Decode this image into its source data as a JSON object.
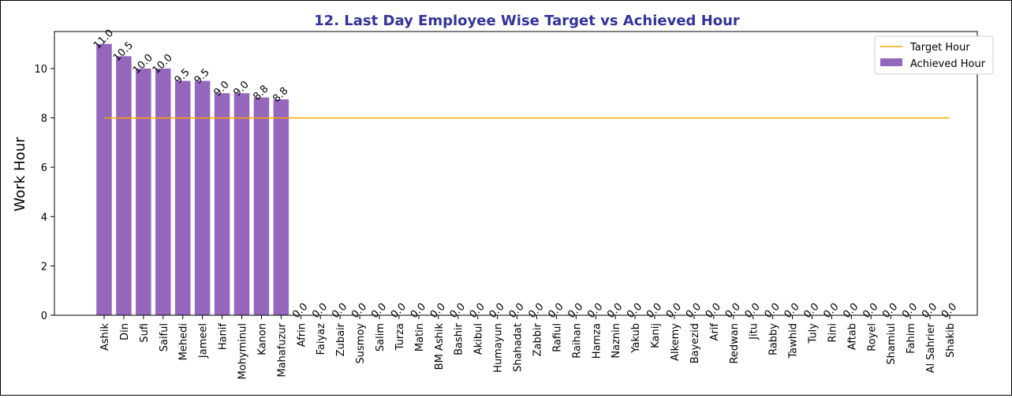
{
  "chart_data": {
    "type": "bar",
    "title": "12. Last Day Employee Wise Target vs Achieved Hour",
    "ylabel": "Work Hour",
    "xlabel": "",
    "ylim": [
      0,
      11.5
    ],
    "yticks": [
      0,
      2,
      4,
      6,
      8,
      10
    ],
    "grid": false,
    "legend_position": "top-right",
    "categories": [
      "Ashik",
      "Din",
      "Sufi",
      "Saiful",
      "Mehedi",
      "Jameel",
      "Hanif",
      "Mohyminul",
      "Kanon",
      "Mahafuzur",
      "Afrin",
      "Faiyaz",
      "Zubair",
      "Susmoy",
      "Salim",
      "Turza",
      "Matin",
      "BM Ashik",
      "Bashir",
      "Akibul",
      "Humayun",
      "Shahadat",
      "Zabbir",
      "Rafiul",
      "Raihan",
      "Hamza",
      "Naznin",
      "Yakub",
      "Kanij",
      "Alkemy",
      "Bayezid",
      "Arif",
      "Redwan",
      "Jitu",
      "Rabby",
      "Tawhid",
      "Tuly",
      "Rini",
      "Aftab",
      "Royel",
      "Shamiul",
      "Fahim",
      "Al Sahrier",
      "Shakib"
    ],
    "series": [
      {
        "name": "Achieved Hour",
        "kind": "bar",
        "color": "#9467bd",
        "values": [
          11.0,
          10.5,
          10.0,
          10.0,
          9.5,
          9.5,
          9.0,
          9.0,
          8.83,
          8.75,
          0,
          0,
          0,
          0,
          0,
          0,
          0,
          0,
          0,
          0,
          0,
          0,
          0,
          0,
          0,
          0,
          0,
          0,
          0,
          0,
          0,
          0,
          0,
          0,
          0,
          0,
          0,
          0,
          0,
          0,
          0,
          0,
          0,
          0
        ],
        "labels": [
          "11.0",
          "10.5",
          "10.0",
          "10.0",
          "9.5",
          "9.5",
          "9.0",
          "9.0",
          "8.8",
          "8.8",
          "0.0",
          "0.0",
          "0.0",
          "0.0",
          "0.0",
          "0.0",
          "0.0",
          "0.0",
          "0.0",
          "0.0",
          "0.0",
          "0.0",
          "0.0",
          "0.0",
          "0.0",
          "0.0",
          "0.0",
          "0.0",
          "0.0",
          "0.0",
          "0.0",
          "0.0",
          "0.0",
          "0.0",
          "0.0",
          "0.0",
          "0.0",
          "0.0",
          "0.0",
          "0.0",
          "0.0",
          "0.0",
          "0.0",
          "0.0"
        ]
      },
      {
        "name": "Target Hour",
        "kind": "line",
        "color": "#ffa500",
        "value": 8
      }
    ],
    "title_color": "#33339a"
  }
}
